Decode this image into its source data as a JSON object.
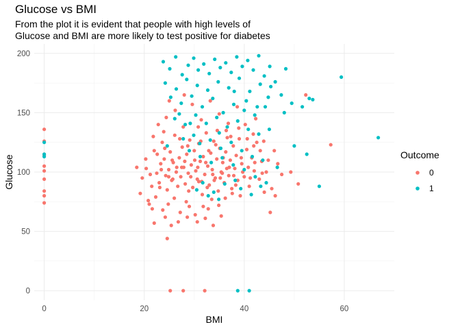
{
  "chart_data": {
    "type": "scatter",
    "title": "Glucose vs BMI",
    "subtitle_lines": [
      "From the plot it is evident that people with high levels of",
      "Glucose and BMI are more likely to test positive for diabetes"
    ],
    "xlabel": "BMI",
    "ylabel": "Glucose",
    "xlim": [
      -2,
      70
    ],
    "ylim": [
      -8,
      208
    ],
    "x_ticks": [
      0,
      20,
      40,
      60
    ],
    "y_ticks": [
      0,
      50,
      100,
      150,
      200
    ],
    "grid": true,
    "legend": {
      "title": "Outcome",
      "position": "right"
    },
    "series": [
      {
        "name": "0",
        "color": "#F8766D",
        "points": [
          [
            0,
            136
          ],
          [
            0,
            126
          ],
          [
            0,
            114
          ],
          [
            0,
            105
          ],
          [
            0,
            101
          ],
          [
            0,
            94
          ],
          [
            0,
            84
          ],
          [
            0,
            80
          ],
          [
            0,
            74
          ],
          [
            0,
            115
          ],
          [
            19.6,
            95
          ],
          [
            20.4,
            103
          ],
          [
            21.0,
            73
          ],
          [
            21.5,
            88
          ],
          [
            22.0,
            118
          ],
          [
            22.5,
            99
          ],
          [
            23.0,
            91
          ],
          [
            23.3,
            107
          ],
          [
            23.6,
            125
          ],
          [
            24.0,
            111
          ],
          [
            24.3,
            97
          ],
          [
            24.6,
            85
          ],
          [
            24.9,
            102
          ],
          [
            25.2,
            117
          ],
          [
            25.5,
            93
          ],
          [
            25.8,
            108
          ],
          [
            26.1,
            131
          ],
          [
            26.4,
            100
          ],
          [
            26.7,
            88
          ],
          [
            27.0,
            112
          ],
          [
            27.3,
            96
          ],
          [
            27.6,
            121
          ],
          [
            27.9,
            104
          ],
          [
            28.2,
            90
          ],
          [
            28.5,
            115
          ],
          [
            28.8,
            99
          ],
          [
            29.1,
            127
          ],
          [
            29.4,
            106
          ],
          [
            29.7,
            87
          ],
          [
            30.0,
            118
          ],
          [
            30.3,
            101
          ],
          [
            30.6,
            94
          ],
          [
            30.9,
            124
          ],
          [
            31.2,
            109
          ],
          [
            31.5,
            92
          ],
          [
            31.8,
            113
          ],
          [
            32.1,
            98
          ],
          [
            32.4,
            133
          ],
          [
            32.7,
            105
          ],
          [
            33.0,
            89
          ],
          [
            33.3,
            116
          ],
          [
            33.6,
            102
          ],
          [
            33.9,
            126
          ],
          [
            34.2,
            95
          ],
          [
            34.5,
            111
          ],
          [
            34.8,
            84
          ],
          [
            35.1,
            120
          ],
          [
            35.4,
            100
          ],
          [
            35.7,
            108
          ],
          [
            36.0,
            91
          ],
          [
            36.3,
            117
          ],
          [
            36.6,
            129
          ],
          [
            36.9,
            97
          ],
          [
            37.2,
            110
          ],
          [
            37.5,
            86
          ],
          [
            37.8,
            122
          ],
          [
            38.1,
            103
          ],
          [
            38.4,
            114
          ],
          [
            38.7,
            93
          ],
          [
            39.0,
            128
          ],
          [
            39.5,
            107
          ],
          [
            40.0,
            96
          ],
          [
            40.5,
            119
          ],
          [
            41.0,
            88
          ],
          [
            41.5,
            112
          ],
          [
            42.0,
            101
          ],
          [
            42.5,
            125
          ],
          [
            43.0,
            94
          ],
          [
            43.5,
            109
          ],
          [
            44.0,
            83
          ],
          [
            22.8,
            140
          ],
          [
            24.4,
            146
          ],
          [
            26.2,
            152
          ],
          [
            27.8,
            138
          ],
          [
            29.6,
            157
          ],
          [
            31.4,
            144
          ],
          [
            33.2,
            160
          ],
          [
            35.0,
            149
          ],
          [
            36.8,
            141
          ],
          [
            38.6,
            155
          ],
          [
            25.0,
            160
          ],
          [
            28.0,
            165
          ],
          [
            21.8,
            130
          ],
          [
            23.9,
            134
          ],
          [
            30.8,
            138
          ],
          [
            34.6,
            135
          ],
          [
            40.2,
            140
          ],
          [
            42.3,
            145
          ],
          [
            44.8,
            110
          ],
          [
            46.0,
            118
          ],
          [
            18.5,
            104
          ],
          [
            19.2,
            82
          ],
          [
            20.8,
            76
          ],
          [
            21.6,
            69
          ],
          [
            22.3,
            79
          ],
          [
            23.7,
            68
          ],
          [
            24.8,
            73
          ],
          [
            26.0,
            78
          ],
          [
            27.2,
            66
          ],
          [
            28.4,
            75
          ],
          [
            29.0,
            71
          ],
          [
            30.2,
            64
          ],
          [
            31.6,
            81
          ],
          [
            32.8,
            69
          ],
          [
            33.5,
            77
          ],
          [
            34.9,
            72
          ],
          [
            36.2,
            78
          ],
          [
            37.6,
            82
          ],
          [
            39.2,
            80
          ],
          [
            45.2,
            66
          ],
          [
            22.0,
            57
          ],
          [
            24.2,
            62
          ],
          [
            25.4,
            55
          ],
          [
            26.8,
            58
          ],
          [
            28.6,
            62
          ],
          [
            30.6,
            58
          ],
          [
            32.2,
            61
          ],
          [
            33.8,
            55
          ],
          [
            35.4,
            63
          ],
          [
            31.8,
            71
          ],
          [
            24.6,
            44
          ],
          [
            25.2,
            0
          ],
          [
            27.8,
            0
          ],
          [
            32.1,
            0
          ],
          [
            20.3,
            111
          ],
          [
            21.2,
            98
          ],
          [
            23.1,
            87
          ],
          [
            25.7,
            94
          ],
          [
            27.5,
            104
          ],
          [
            28.9,
            84
          ],
          [
            30.9,
            92
          ],
          [
            32.6,
            87
          ],
          [
            34.0,
            93
          ],
          [
            35.6,
            99
          ],
          [
            37.0,
            104
          ],
          [
            38.3,
            89
          ],
          [
            39.7,
            100
          ],
          [
            41.2,
            95
          ],
          [
            43.2,
            118
          ],
          [
            44.4,
            100
          ],
          [
            46.2,
            80
          ],
          [
            47.5,
            98
          ],
          [
            49.3,
            100
          ],
          [
            50.8,
            90
          ],
          [
            52.3,
            165
          ],
          [
            57.3,
            123
          ],
          [
            45.5,
            86
          ],
          [
            41.8,
            132
          ],
          [
            43.9,
            126
          ],
          [
            46.7,
            107
          ],
          [
            22.6,
            115
          ],
          [
            24.1,
            120
          ],
          [
            25.6,
            110
          ],
          [
            27.1,
            128
          ],
          [
            28.7,
            122
          ],
          [
            30.1,
            110
          ],
          [
            31.3,
            126
          ],
          [
            32.9,
            118
          ],
          [
            34.3,
            123
          ],
          [
            35.8,
            112
          ],
          [
            23.4,
            102
          ],
          [
            24.9,
            96
          ],
          [
            26.5,
            104
          ],
          [
            28.1,
            109
          ],
          [
            29.3,
            96
          ],
          [
            30.7,
            104
          ],
          [
            32.3,
            108
          ],
          [
            33.7,
            98
          ],
          [
            35.2,
            95
          ],
          [
            36.5,
            103
          ],
          [
            37.9,
            97
          ],
          [
            39.4,
            112
          ],
          [
            40.8,
            104
          ],
          [
            42.1,
            108
          ],
          [
            43.6,
            99
          ],
          [
            36.4,
            135
          ],
          [
            37.3,
            130
          ],
          [
            38.9,
            137
          ],
          [
            40.6,
            128
          ],
          [
            41.9,
            122
          ]
        ]
      },
      {
        "name": "1",
        "color": "#00BFC4",
        "points": [
          [
            0,
            125
          ],
          [
            0,
            115
          ],
          [
            0,
            113
          ],
          [
            23.8,
            193
          ],
          [
            25.1,
            187
          ],
          [
            26.3,
            197
          ],
          [
            27.6,
            182
          ],
          [
            28.8,
            190
          ],
          [
            29.9,
            196
          ],
          [
            30.8,
            186
          ],
          [
            31.9,
            191
          ],
          [
            33.0,
            183
          ],
          [
            34.1,
            195
          ],
          [
            35.2,
            188
          ],
          [
            36.3,
            192
          ],
          [
            37.4,
            184
          ],
          [
            38.5,
            197
          ],
          [
            39.6,
            189
          ],
          [
            40.7,
            194
          ],
          [
            41.8,
            186
          ],
          [
            42.9,
            198
          ],
          [
            44.0,
            181
          ],
          [
            45.1,
            189
          ],
          [
            46.2,
            176
          ],
          [
            48.3,
            187
          ],
          [
            24.2,
            175
          ],
          [
            26.4,
            170
          ],
          [
            28.5,
            178
          ],
          [
            30.6,
            173
          ],
          [
            32.7,
            169
          ],
          [
            34.8,
            176
          ],
          [
            36.9,
            171
          ],
          [
            39.0,
            179
          ],
          [
            41.1,
            168
          ],
          [
            43.2,
            174
          ],
          [
            45.3,
            172
          ],
          [
            47.4,
            165
          ],
          [
            49.5,
            158
          ],
          [
            51.6,
            155
          ],
          [
            53.7,
            161
          ],
          [
            59.4,
            180
          ],
          [
            66.8,
            129
          ],
          [
            55.0,
            88
          ],
          [
            52.5,
            115
          ],
          [
            50.0,
            122
          ],
          [
            25.3,
            163
          ],
          [
            27.4,
            158
          ],
          [
            29.5,
            164
          ],
          [
            31.6,
            155
          ],
          [
            33.7,
            162
          ],
          [
            35.8,
            150
          ],
          [
            37.9,
            157
          ],
          [
            40.0,
            152
          ],
          [
            42.1,
            148
          ],
          [
            44.2,
            155
          ],
          [
            26.1,
            145
          ],
          [
            28.2,
            140
          ],
          [
            30.3,
            148
          ],
          [
            32.4,
            141
          ],
          [
            34.5,
            146
          ],
          [
            36.6,
            138
          ],
          [
            38.7,
            143
          ],
          [
            40.8,
            136
          ],
          [
            42.9,
            132
          ],
          [
            45.0,
            136
          ],
          [
            24.6,
            122
          ],
          [
            27.8,
            128
          ],
          [
            29.9,
            131
          ],
          [
            31.1,
            124
          ],
          [
            33.2,
            127
          ],
          [
            35.3,
            120
          ],
          [
            37.4,
            125
          ],
          [
            39.5,
            118
          ],
          [
            41.6,
            113
          ],
          [
            43.7,
            110
          ],
          [
            29.0,
            118
          ],
          [
            31.2,
            113
          ],
          [
            33.4,
            108
          ],
          [
            35.6,
            112
          ],
          [
            37.8,
            106
          ],
          [
            40.0,
            102
          ],
          [
            42.2,
            96
          ],
          [
            44.4,
            91
          ],
          [
            46.6,
            104
          ],
          [
            48.0,
            150
          ],
          [
            30.5,
            85
          ],
          [
            32.8,
            80
          ],
          [
            34.9,
            77
          ],
          [
            36.1,
            90
          ],
          [
            38.2,
            93
          ],
          [
            39.3,
            86
          ],
          [
            41.4,
            81
          ],
          [
            43.3,
            88
          ],
          [
            31.7,
            91
          ],
          [
            33.9,
            83
          ],
          [
            38.7,
            0
          ],
          [
            41.0,
            0
          ],
          [
            53.0,
            162
          ],
          [
            27.0,
            149
          ],
          [
            29.2,
            141
          ],
          [
            38.0,
            168
          ],
          [
            40.4,
            160
          ],
          [
            42.6,
            155
          ],
          [
            44.8,
            163
          ],
          [
            35.0,
            133
          ]
        ]
      }
    ]
  }
}
